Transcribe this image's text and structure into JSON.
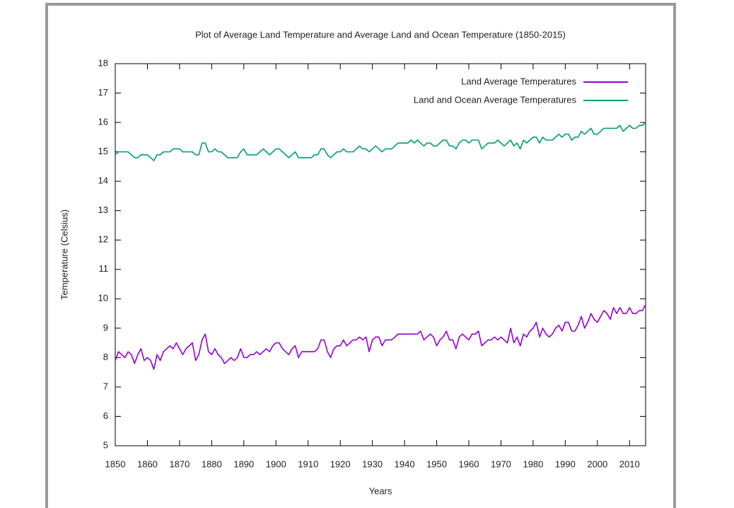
{
  "chart_data": {
    "type": "line",
    "title": "Plot of Average Land Temperature and Average Land and Ocean Temperature (1850-2015)",
    "xlabel": "Years",
    "ylabel": "Temperature (Celsius)",
    "xlim": [
      1850,
      2015
    ],
    "ylim": [
      5,
      18
    ],
    "xticks": [
      1850,
      1860,
      1870,
      1880,
      1890,
      1900,
      1910,
      1920,
      1930,
      1940,
      1950,
      1960,
      1970,
      1980,
      1990,
      2000,
      2010
    ],
    "yticks": [
      5,
      6,
      7,
      8,
      9,
      10,
      11,
      12,
      13,
      14,
      15,
      16,
      17,
      18
    ],
    "legend": "top-right",
    "x": [
      1850,
      1851,
      1852,
      1853,
      1854,
      1855,
      1856,
      1857,
      1858,
      1859,
      1860,
      1861,
      1862,
      1863,
      1864,
      1865,
      1866,
      1867,
      1868,
      1869,
      1870,
      1871,
      1872,
      1873,
      1874,
      1875,
      1876,
      1877,
      1878,
      1879,
      1880,
      1881,
      1882,
      1883,
      1884,
      1885,
      1886,
      1887,
      1888,
      1889,
      1890,
      1891,
      1892,
      1893,
      1894,
      1895,
      1896,
      1897,
      1898,
      1899,
      1900,
      1901,
      1902,
      1903,
      1904,
      1905,
      1906,
      1907,
      1908,
      1909,
      1910,
      1911,
      1912,
      1913,
      1914,
      1915,
      1916,
      1917,
      1918,
      1919,
      1920,
      1921,
      1922,
      1923,
      1924,
      1925,
      1926,
      1927,
      1928,
      1929,
      1930,
      1931,
      1932,
      1933,
      1934,
      1935,
      1936,
      1937,
      1938,
      1939,
      1940,
      1941,
      1942,
      1943,
      1944,
      1945,
      1946,
      1947,
      1948,
      1949,
      1950,
      1951,
      1952,
      1953,
      1954,
      1955,
      1956,
      1957,
      1958,
      1959,
      1960,
      1961,
      1962,
      1963,
      1964,
      1965,
      1966,
      1967,
      1968,
      1969,
      1970,
      1971,
      1972,
      1973,
      1974,
      1975,
      1976,
      1977,
      1978,
      1979,
      1980,
      1981,
      1982,
      1983,
      1984,
      1985,
      1986,
      1987,
      1988,
      1989,
      1990,
      1991,
      1992,
      1993,
      1994,
      1995,
      1996,
      1997,
      1998,
      1999,
      2000,
      2001,
      2002,
      2003,
      2004,
      2005,
      2006,
      2007,
      2008,
      2009,
      2010,
      2011,
      2012,
      2013,
      2014,
      2015
    ],
    "series": [
      {
        "name": "Land Average Temperatures",
        "color": "#9400d3",
        "values": [
          7.9,
          8.2,
          8.1,
          8.0,
          8.2,
          8.1,
          7.8,
          8.1,
          8.3,
          7.9,
          8.0,
          7.9,
          7.6,
          8.1,
          7.9,
          8.2,
          8.3,
          8.4,
          8.3,
          8.5,
          8.3,
          8.1,
          8.3,
          8.4,
          8.5,
          7.9,
          8.1,
          8.6,
          8.8,
          8.2,
          8.1,
          8.3,
          8.1,
          8.0,
          7.8,
          7.9,
          8.0,
          7.9,
          8.0,
          8.3,
          8.0,
          8.0,
          8.1,
          8.1,
          8.2,
          8.1,
          8.2,
          8.3,
          8.2,
          8.4,
          8.5,
          8.5,
          8.3,
          8.2,
          8.1,
          8.3,
          8.4,
          8.0,
          8.2,
          8.2,
          8.2,
          8.2,
          8.2,
          8.3,
          8.6,
          8.6,
          8.2,
          8.0,
          8.3,
          8.4,
          8.4,
          8.6,
          8.4,
          8.5,
          8.6,
          8.6,
          8.7,
          8.6,
          8.7,
          8.2,
          8.6,
          8.7,
          8.7,
          8.4,
          8.6,
          8.6,
          8.6,
          8.7,
          8.8,
          8.8,
          8.8,
          8.8,
          8.8,
          8.8,
          8.8,
          8.9,
          8.6,
          8.7,
          8.8,
          8.7,
          8.4,
          8.6,
          8.7,
          8.9,
          8.6,
          8.6,
          8.3,
          8.7,
          8.8,
          8.7,
          8.6,
          8.8,
          8.8,
          8.9,
          8.4,
          8.5,
          8.6,
          8.6,
          8.7,
          8.6,
          8.7,
          8.6,
          8.5,
          9.0,
          8.5,
          8.7,
          8.4,
          8.8,
          8.7,
          8.9,
          9.0,
          9.2,
          8.7,
          9.0,
          8.8,
          8.7,
          8.8,
          9.0,
          9.1,
          8.9,
          9.2,
          9.2,
          8.9,
          8.9,
          9.1,
          9.4,
          9.0,
          9.2,
          9.5,
          9.3,
          9.2,
          9.4,
          9.6,
          9.5,
          9.3,
          9.7,
          9.5,
          9.7,
          9.5,
          9.5,
          9.7,
          9.5,
          9.5,
          9.6,
          9.6,
          9.8
        ]
      },
      {
        "name": "Land and Ocean Average Temperatures",
        "color": "#009e73",
        "values": [
          14.9,
          15.0,
          15.0,
          15.0,
          15.0,
          14.9,
          14.8,
          14.8,
          14.9,
          14.9,
          14.9,
          14.8,
          14.7,
          14.9,
          14.9,
          15.0,
          15.0,
          15.0,
          15.1,
          15.1,
          15.1,
          15.0,
          15.0,
          15.0,
          15.0,
          14.9,
          14.9,
          15.3,
          15.3,
          15.0,
          15.0,
          15.1,
          15.0,
          15.0,
          14.9,
          14.8,
          14.8,
          14.8,
          14.8,
          15.0,
          15.1,
          14.9,
          14.9,
          14.9,
          14.9,
          15.0,
          15.1,
          15.0,
          14.9,
          15.0,
          15.1,
          15.1,
          15.0,
          14.9,
          14.8,
          14.9,
          15.0,
          14.8,
          14.8,
          14.8,
          14.8,
          14.8,
          14.9,
          14.9,
          15.1,
          15.1,
          14.9,
          14.8,
          14.9,
          15.0,
          15.0,
          15.1,
          15.0,
          15.0,
          15.0,
          15.1,
          15.2,
          15.1,
          15.1,
          15.0,
          15.1,
          15.2,
          15.1,
          15.0,
          15.1,
          15.1,
          15.1,
          15.2,
          15.3,
          15.3,
          15.3,
          15.3,
          15.4,
          15.3,
          15.4,
          15.3,
          15.2,
          15.3,
          15.3,
          15.2,
          15.2,
          15.3,
          15.4,
          15.4,
          15.2,
          15.2,
          15.1,
          15.3,
          15.4,
          15.4,
          15.3,
          15.4,
          15.4,
          15.4,
          15.1,
          15.2,
          15.3,
          15.3,
          15.3,
          15.4,
          15.3,
          15.2,
          15.3,
          15.4,
          15.2,
          15.3,
          15.1,
          15.4,
          15.3,
          15.4,
          15.5,
          15.5,
          15.3,
          15.5,
          15.4,
          15.4,
          15.4,
          15.5,
          15.6,
          15.5,
          15.6,
          15.6,
          15.4,
          15.5,
          15.5,
          15.7,
          15.6,
          15.7,
          15.8,
          15.6,
          15.6,
          15.7,
          15.8,
          15.8,
          15.8,
          15.8,
          15.8,
          15.9,
          15.7,
          15.8,
          15.9,
          15.8,
          15.8,
          15.9,
          15.9,
          16.0
        ]
      }
    ]
  }
}
